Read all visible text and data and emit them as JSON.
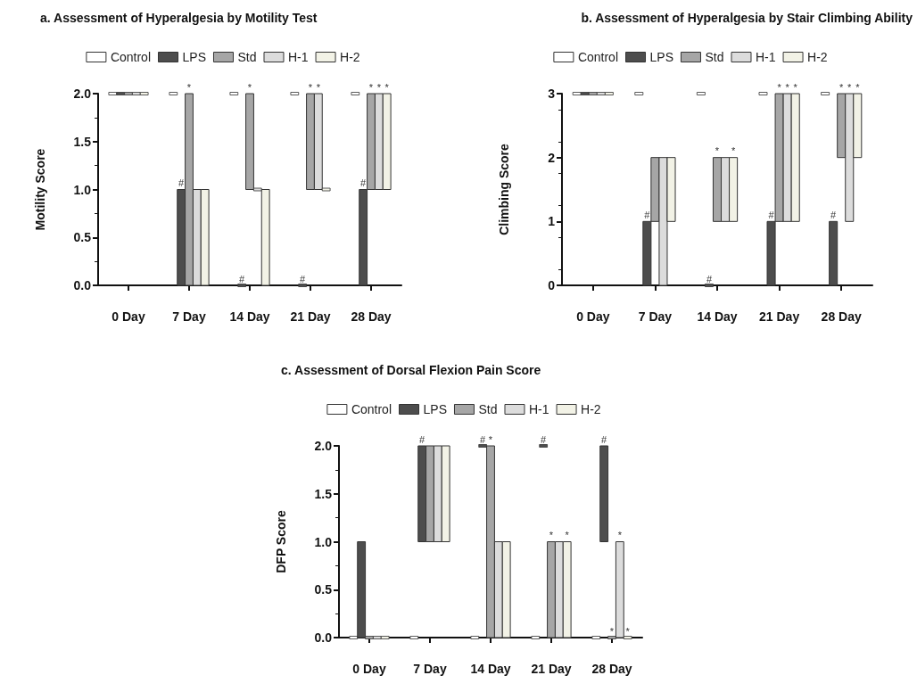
{
  "chart_data": [
    {
      "type": "bar",
      "title": "a. Assessment of Hyperalgesia by Motility Test",
      "ylabel": "Motility Score",
      "legend": "top",
      "grid": false,
      "categories": [
        "0 Day",
        "7 Day",
        "14 Day",
        "21 Day",
        "28 Day"
      ],
      "ylim": [
        0,
        2
      ],
      "yticks": [
        {
          "value": 0,
          "label": "0.0"
        },
        {
          "value": 0.5,
          "label": "0.5"
        },
        {
          "value": 1,
          "label": "1.0"
        },
        {
          "value": 1.5,
          "label": "1.5"
        },
        {
          "value": 2,
          "label": "2.0"
        }
      ],
      "series": [
        {
          "name": "Control",
          "color": "#ffffff",
          "base": [
            2,
            2,
            2,
            2,
            2
          ],
          "values": [
            0,
            0,
            0,
            0,
            0
          ],
          "value_labels": [
            null,
            null,
            null,
            null,
            null
          ]
        },
        {
          "name": "LPS",
          "color": "#4d4d4d",
          "base": [
            2,
            0,
            0,
            0,
            0
          ],
          "values": [
            0,
            1,
            0,
            0,
            1
          ],
          "value_labels": [
            null,
            "#",
            "#",
            "#",
            "#"
          ]
        },
        {
          "name": "Std",
          "color": "#a6a6a6",
          "base": [
            2,
            0,
            1,
            1,
            1
          ],
          "values": [
            0,
            2,
            1,
            1,
            1
          ],
          "value_labels": [
            null,
            "*",
            "*",
            "*",
            "*"
          ]
        },
        {
          "name": "H-1",
          "color": "#dcdcdc",
          "base": [
            2,
            0,
            1,
            1,
            1
          ],
          "values": [
            0,
            1,
            0,
            1,
            1
          ],
          "value_labels": [
            null,
            null,
            null,
            "*",
            "*"
          ]
        },
        {
          "name": "H-2",
          "color": "#f2f2e6",
          "base": [
            2,
            0,
            0,
            1,
            1
          ],
          "values": [
            0,
            1,
            1,
            0,
            1
          ],
          "value_labels": [
            null,
            null,
            null,
            null,
            "*"
          ]
        }
      ]
    },
    {
      "type": "bar",
      "title": "b. Assessment of Hyperalgesia by Stair Climbing Ability",
      "ylabel": "Climbing Score",
      "legend": "top",
      "grid": false,
      "categories": [
        "0 Day",
        "7 Day",
        "14 Day",
        "21 Day",
        "28 Day"
      ],
      "ylim": [
        0,
        3
      ],
      "yticks": [
        0,
        1,
        2,
        3
      ],
      "series": [
        {
          "name": "Control",
          "color": "#ffffff",
          "base": [
            3,
            3,
            3,
            3,
            3
          ],
          "values": [
            0,
            0,
            0,
            0,
            0
          ],
          "value_labels": [
            null,
            null,
            null,
            null,
            null
          ]
        },
        {
          "name": "LPS",
          "color": "#4d4d4d",
          "base": [
            3,
            0,
            0,
            0,
            0
          ],
          "values": [
            0,
            1,
            0,
            1,
            1
          ],
          "value_labels": [
            null,
            "#",
            "#",
            "#",
            "#"
          ]
        },
        {
          "name": "Std",
          "color": "#a6a6a6",
          "base": [
            3,
            1,
            1,
            1,
            2
          ],
          "values": [
            0,
            1,
            1,
            2,
            1
          ],
          "value_labels": [
            null,
            null,
            "*",
            "*",
            "*"
          ]
        },
        {
          "name": "H-1",
          "color": "#dcdcdc",
          "base": [
            3,
            0,
            1,
            1,
            1
          ],
          "values": [
            0,
            2,
            1,
            2,
            2
          ],
          "value_labels": [
            null,
            null,
            null,
            "*",
            "*"
          ]
        },
        {
          "name": "H-2",
          "color": "#f2f2e6",
          "base": [
            3,
            1,
            1,
            1,
            2
          ],
          "values": [
            0,
            1,
            1,
            2,
            1
          ],
          "value_labels": [
            null,
            null,
            "*",
            "*",
            "*"
          ]
        }
      ]
    },
    {
      "type": "bar",
      "title": "c. Assessment of Dorsal Flexion Pain Score",
      "ylabel": "DFP Score",
      "legend": "top",
      "grid": false,
      "categories": [
        "0 Day",
        "7 Day",
        "14 Day",
        "21 Day",
        "28 Day"
      ],
      "ylim": [
        0,
        2
      ],
      "yticks": [
        {
          "value": 0,
          "label": "0.0"
        },
        {
          "value": 0.5,
          "label": "0.5"
        },
        {
          "value": 1,
          "label": "1.0"
        },
        {
          "value": 1.5,
          "label": "1.5"
        },
        {
          "value": 2,
          "label": "2.0"
        }
      ],
      "series": [
        {
          "name": "Control",
          "color": "#ffffff",
          "base": [
            0,
            0,
            0,
            0,
            0
          ],
          "values": [
            0,
            0,
            0,
            0,
            0
          ],
          "value_labels": [
            null,
            null,
            null,
            null,
            null
          ]
        },
        {
          "name": "LPS",
          "color": "#4d4d4d",
          "base": [
            0,
            1,
            2,
            2,
            1
          ],
          "values": [
            1,
            1,
            0,
            0,
            1
          ],
          "value_labels": [
            null,
            "#",
            "#",
            "#",
            "#"
          ]
        },
        {
          "name": "Std",
          "color": "#a6a6a6",
          "base": [
            0,
            1,
            0,
            0,
            0
          ],
          "values": [
            0,
            1,
            2,
            1,
            0
          ],
          "value_labels": [
            null,
            null,
            "*",
            "*",
            "*"
          ]
        },
        {
          "name": "H-1",
          "color": "#dcdcdc",
          "base": [
            0,
            1,
            0,
            0,
            0
          ],
          "values": [
            0,
            1,
            1,
            1,
            1
          ],
          "value_labels": [
            null,
            null,
            null,
            null,
            "*"
          ]
        },
        {
          "name": "H-2",
          "color": "#f2f2e6",
          "base": [
            0,
            1,
            0,
            0,
            0
          ],
          "values": [
            0,
            1,
            1,
            1,
            0
          ],
          "value_labels": [
            null,
            null,
            null,
            "*",
            "*"
          ]
        }
      ]
    }
  ]
}
